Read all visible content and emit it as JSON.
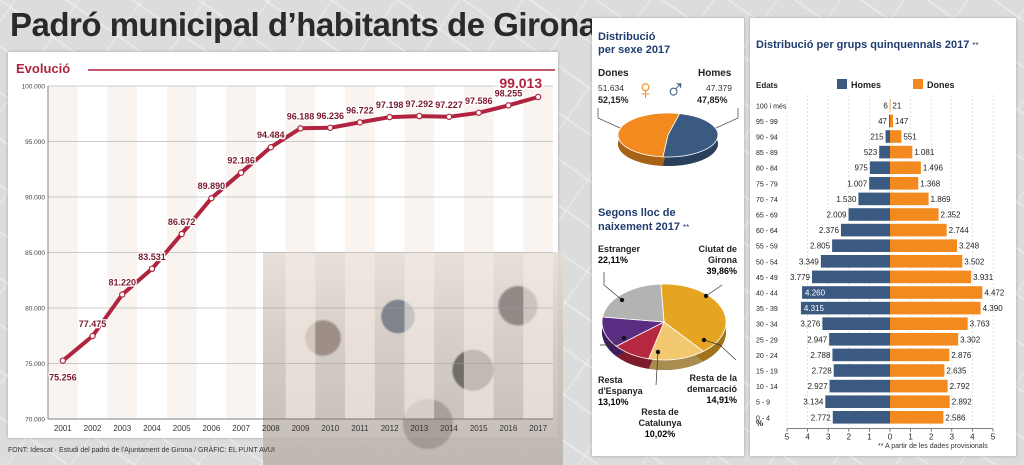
{
  "title": "Padró municipal d’habitants de Girona",
  "footer": "FONT: Idescat · Estudi del padró de l'Ajuntament de Girona / GRÀFIC: EL PUNT AVUI",
  "note": "** A partir de les dades provisionals",
  "colors": {
    "line": "#b0243f",
    "homes": "#3b5a82",
    "dones": "#f28a1f",
    "subtitle": "#1f3d6e"
  },
  "evolucio": {
    "subtitle": "Evolució",
    "highlight_label": "99.013"
  },
  "sexe": {
    "subtitle_l1": "Distribució",
    "subtitle_l2": "per sexe 2017",
    "dones_label": "Dones",
    "dones_count": "51.634",
    "dones_pct": "52,15%",
    "homes_label": "Homes",
    "homes_count": "47.379",
    "homes_pct": "47,85%",
    "female_icon": "♀",
    "male_icon": "♂"
  },
  "naixement": {
    "subtitle_l1": "Segons lloc de",
    "subtitle_l2": "naixement 2017",
    "subtitle_mark": "**",
    "labels": {
      "estranger": [
        "Estranger",
        "22,11%"
      ],
      "girona": [
        "Ciutat de",
        "Girona",
        "39,86%"
      ],
      "espanya": [
        "Resta",
        "d'Espanya",
        "13,10%"
      ],
      "catalunya": [
        "Resta de",
        "Catalunya",
        "10,02%"
      ],
      "demarcacio": [
        "Resta de la",
        "demarcació",
        "14,91%"
      ]
    }
  },
  "piramide": {
    "subtitle": "Distribució per  grups quinquennals 2017",
    "subtitle_mark": "**",
    "edats_label": "Edats",
    "pct_label": "%"
  },
  "chart_data": [
    {
      "type": "line",
      "title": "Evolució",
      "x": [
        "2001",
        "2002",
        "2003",
        "2004",
        "2005",
        "2006",
        "2007",
        "2008",
        "2009",
        "2010",
        "2011",
        "2012",
        "2013",
        "2014",
        "2015",
        "2016",
        "2017"
      ],
      "series": [
        {
          "values": [
            75256,
            77475,
            81220,
            83531,
            86672,
            89890,
            92186,
            94484,
            96188,
            96236,
            96722,
            97198,
            97292,
            97227,
            97586,
            98255,
            99013
          ]
        }
      ],
      "point_labels": [
        "75.256",
        "77.475",
        "81.220",
        "83.531",
        "86.672",
        "89.890",
        "92.186",
        "94.484",
        "96.188",
        "96.236",
        "96.722",
        "97.198",
        "97.292",
        "97.227",
        "97.586",
        "98.255",
        "99.013"
      ],
      "y_ticks": [
        "70.000",
        "75.000",
        "80.000",
        "85.000",
        "90.000",
        "95.000",
        "100.000"
      ],
      "ylim": [
        70000,
        100000
      ],
      "grid": true
    },
    {
      "type": "pie",
      "title": "Distribució per sexe 2017",
      "categories": [
        "Dones",
        "Homes"
      ],
      "values": [
        52.15,
        47.85
      ],
      "counts": [
        51634,
        47379
      ]
    },
    {
      "type": "pie",
      "title": "Segons lloc de naixement 2017",
      "categories": [
        "Ciutat de Girona",
        "Resta de la demarcació",
        "Resta de Catalunya",
        "Resta d'Espanya",
        "Estranger"
      ],
      "values": [
        39.86,
        14.91,
        10.02,
        13.1,
        22.11
      ],
      "colors": [
        "#e6a423",
        "#f2c870",
        "#b5283f",
        "#5a2d82",
        "#b3b3b3"
      ]
    },
    {
      "type": "bar",
      "title": "Distribució per grups quinquennals 2017",
      "categories": [
        "100 i més",
        "95 - 99",
        "90 - 94",
        "85 - 89",
        "80 - 84",
        "75 - 79",
        "70 - 74",
        "65 - 69",
        "60 - 64",
        "55 - 59",
        "50 - 54",
        "45 - 49",
        "40 - 44",
        "35 - 39",
        "30 - 34",
        "25 - 29",
        "20 - 24",
        "15 - 19",
        "10 - 14",
        "5 - 9",
        "0 - 4"
      ],
      "series": [
        {
          "name": "Homes",
          "values": [
            6,
            47,
            215,
            523,
            975,
            1007,
            1530,
            2009,
            2376,
            2805,
            3349,
            3779,
            4260,
            4315,
            3276,
            2947,
            2788,
            2728,
            2927,
            3134,
            2772
          ],
          "labels": [
            "6",
            "47",
            "215",
            "523",
            "975",
            "1.007",
            "1.530",
            "2.009",
            "2.376",
            "2.805",
            "3.349",
            "3.779",
            "4.260",
            "4.315",
            "3.276",
            "2.947",
            "2.788",
            "2.728",
            "2.927",
            "3.134",
            "2.772"
          ]
        },
        {
          "name": "Dones",
          "values": [
            21,
            147,
            551,
            1081,
            1496,
            1368,
            1869,
            2352,
            2744,
            3248,
            3502,
            3931,
            4472,
            4390,
            3763,
            3302,
            2876,
            2635,
            2792,
            2892,
            2586
          ],
          "labels": [
            "21",
            "147",
            "551",
            "1.081",
            "1.496",
            "1.368",
            "1.869",
            "2.352",
            "2.744",
            "3.248",
            "3.502",
            "3.931",
            "4.472",
            "4.390",
            "3.763",
            "3.302",
            "2.876",
            "2.635",
            "2.792",
            "2.892",
            "2.586"
          ]
        }
      ],
      "x_ticks": [
        "5",
        "4",
        "3",
        "2",
        "1",
        "0",
        "1",
        "2",
        "3",
        "4",
        "5"
      ],
      "xlabel": "%",
      "xlim": [
        -5,
        5
      ]
    }
  ]
}
